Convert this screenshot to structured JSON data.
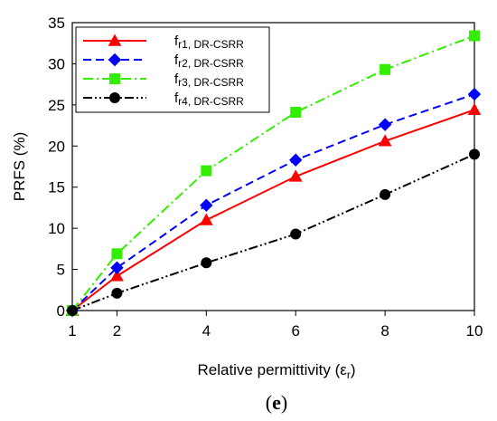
{
  "chart_data": {
    "type": "line",
    "xlabel": "Relative permittivity",
    "xlabel_symbol": "ε",
    "xlabel_sub": "r",
    "ylabel": "PRFS (%)",
    "xlim": [
      1,
      10
    ],
    "ylim": [
      0,
      35
    ],
    "xticks": [
      1,
      2,
      4,
      6,
      8,
      10
    ],
    "yticks": [
      0,
      5,
      10,
      15,
      20,
      25,
      30,
      35
    ],
    "grid": false,
    "legend_position": "top-left",
    "x": [
      1,
      2,
      4,
      6,
      8,
      10
    ],
    "series": [
      {
        "name_main": "f",
        "name_sub": "r1, DR-CSRR",
        "color": "#ff0000",
        "marker": "triangle",
        "dash": "solid",
        "values": [
          0,
          4.2,
          11.0,
          16.3,
          20.6,
          24.4
        ]
      },
      {
        "name_main": "f",
        "name_sub": "r2, DR-CSRR",
        "color": "#0000ff",
        "marker": "diamond",
        "dash": "dashed",
        "values": [
          0,
          5.2,
          12.8,
          18.3,
          22.6,
          26.3
        ]
      },
      {
        "name_main": "f",
        "name_sub": "r3, DR-CSRR",
        "color": "#33ee00",
        "marker": "square",
        "dash": "dashdot",
        "values": [
          0,
          6.9,
          17.0,
          24.1,
          29.3,
          33.4
        ]
      },
      {
        "name_main": "f",
        "name_sub": "r4, DR-CSRR",
        "color": "#000000",
        "marker": "circle",
        "dash": "dashdotdot",
        "values": [
          0,
          2.1,
          5.8,
          9.3,
          14.1,
          19.0
        ]
      }
    ]
  },
  "caption": {
    "open": "(",
    "letter": "e",
    "close": ")"
  }
}
